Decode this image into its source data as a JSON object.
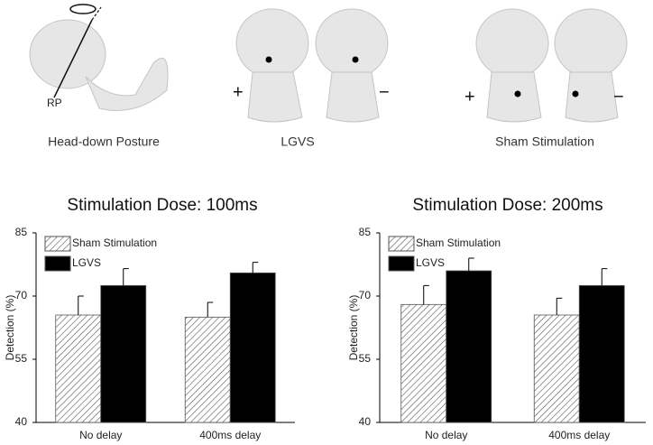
{
  "illustrations": {
    "captions": [
      "Head-down Posture",
      "LGVS",
      "Sham Stimulation"
    ],
    "rp": "RP",
    "plus": "+",
    "minus": "−"
  },
  "chart_data": [
    {
      "type": "bar",
      "title": "Stimulation Dose: 100ms",
      "y_label": "Detection (%)",
      "categories": [
        "No delay",
        "400ms delay"
      ],
      "series": [
        {
          "name": "Sham Stimulation",
          "color": "#555555",
          "pattern": "hatch",
          "values": [
            65.5,
            65
          ],
          "errors": [
            4.5,
            3.5
          ]
        },
        {
          "name": "LGVS",
          "color": "#000000",
          "pattern": "solid",
          "values": [
            72.5,
            75.5
          ],
          "errors": [
            4,
            2.5
          ]
        }
      ],
      "ylim": [
        40,
        85
      ],
      "yticks": [
        40,
        55,
        70,
        85
      ],
      "legend": "upper-left"
    },
    {
      "type": "bar",
      "title": "Stimulation Dose: 200ms",
      "y_label": "Detection (%)",
      "categories": [
        "No delay",
        "400ms delay"
      ],
      "series": [
        {
          "name": "Sham Stimulation",
          "color": "#555555",
          "pattern": "hatch",
          "values": [
            68,
            65.5
          ],
          "errors": [
            4.5,
            4
          ]
        },
        {
          "name": "LGVS",
          "color": "#000000",
          "pattern": "solid",
          "values": [
            76,
            72.5
          ],
          "errors": [
            3,
            4
          ]
        }
      ],
      "ylim": [
        40,
        85
      ],
      "yticks": [
        40,
        55,
        70,
        85
      ],
      "legend": "upper-left"
    }
  ]
}
